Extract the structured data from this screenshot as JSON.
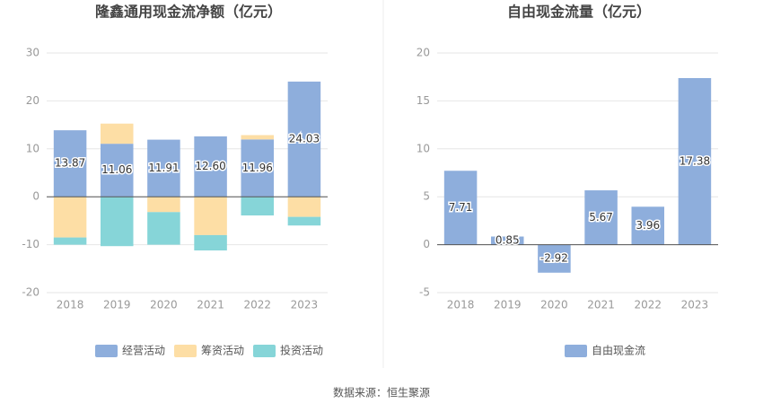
{
  "chart_data": [
    {
      "type": "stacked_bar",
      "title": "隆鑫通用现金流净额（亿元）",
      "categories": [
        "2018",
        "2019",
        "2020",
        "2021",
        "2022",
        "2023"
      ],
      "series": [
        {
          "name": "经营活动",
          "color": "#8eaedc",
          "values": [
            13.87,
            11.06,
            11.91,
            12.6,
            11.96,
            24.03
          ],
          "value_labels": [
            "13.87",
            "11.06",
            "11.91",
            "12.60",
            "11.96",
            "24.03"
          ]
        },
        {
          "name": "筹资活动",
          "color": "#fddea5",
          "values": [
            -8.5,
            4.2,
            -3.2,
            -8.0,
            0.9,
            -4.2
          ]
        },
        {
          "name": "投资活动",
          "color": "#86d5d8",
          "values": [
            -1.5,
            -10.3,
            -6.8,
            -3.2,
            -3.9,
            -1.8
          ]
        }
      ],
      "ylim": [
        -20,
        30
      ],
      "yticks": [
        -20,
        -10,
        0,
        10,
        20,
        30
      ],
      "grid": true
    },
    {
      "type": "bar",
      "title": "自由现金流量（亿元）",
      "categories": [
        "2018",
        "2019",
        "2020",
        "2021",
        "2022",
        "2023"
      ],
      "series": [
        {
          "name": "自由现金流",
          "color": "#8eaedc",
          "values": [
            7.71,
            0.85,
            -2.92,
            5.67,
            3.96,
            17.38
          ]
        }
      ],
      "ylim": [
        -5,
        20
      ],
      "yticks": [
        -5,
        0,
        5,
        10,
        15,
        20
      ],
      "grid": true
    }
  ],
  "source": "数据来源：恒生聚源"
}
